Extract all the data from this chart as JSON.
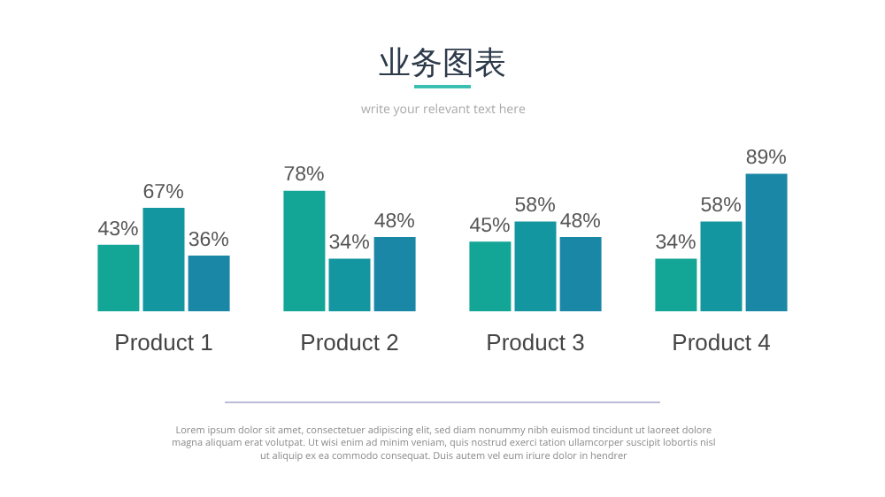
{
  "chart_data": {
    "type": "bar",
    "title": "业务图表",
    "subtitle": "write your relevant text here",
    "categories": [
      "Product 1",
      "Product 2",
      "Product 3",
      "Product 4"
    ],
    "series": [
      {
        "color": "#13a596",
        "values": [
          43,
          78,
          45,
          34
        ],
        "value_labels": [
          "43%",
          "78%",
          "45%",
          "34%"
        ]
      },
      {
        "color": "#13969f",
        "values": [
          67,
          34,
          58,
          58
        ],
        "value_labels": [
          "67%",
          "34%",
          "58%",
          "58%"
        ]
      },
      {
        "color": "#1b87a6",
        "values": [
          36,
          48,
          48,
          89
        ],
        "value_labels": [
          "36%",
          "48%",
          "48%",
          "89%"
        ]
      }
    ],
    "annotations": [
      "Lorem ipsum dolor sit amet, consectetuer adipiscing elit, sed diam nonummy nibh euismod tincidunt ut laoreet dolore magna aliquam erat volutpat. Ut wisi enim ad minim veniam, quis nostrud exerci tation ullamcorper suscipit lobortis nisl ut aliquip ex ea commodo consequat. Duis autem vel eum iriure dolor in hendrer"
    ],
    "grid": false
  }
}
